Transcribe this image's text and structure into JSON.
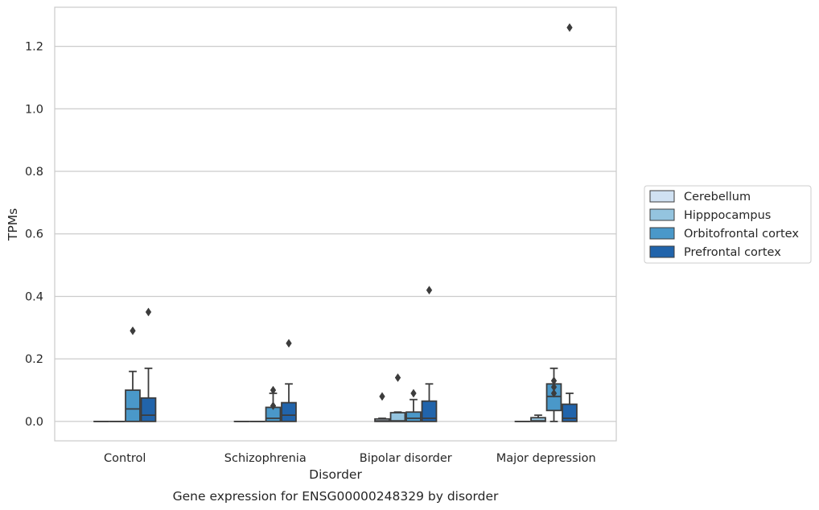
{
  "chart_data": {
    "type": "box",
    "title": "",
    "caption": "Gene expression for ENSG00000248329 by disorder",
    "xlabel": "Disorder",
    "ylabel": "TPMs",
    "ylim": [
      -0.062,
      1.325
    ],
    "yticks": [
      0.0,
      0.2,
      0.4,
      0.6,
      0.8,
      1.0,
      1.2
    ],
    "ytick_labels": [
      "0.0",
      "0.2",
      "0.4",
      "0.6",
      "0.8",
      "1.0",
      "1.2"
    ],
    "grid": "horizontal",
    "legend_position": "right",
    "categories": [
      "Control",
      "Schizophrenia",
      "Bipolar disorder",
      "Major depression"
    ],
    "series": [
      {
        "name": "Cerebellum",
        "color": "#d0e1f2",
        "boxes": [
          {
            "min": 0,
            "q1": 0,
            "median": 0,
            "q3": 0,
            "max": 0,
            "outliers": []
          },
          {
            "min": 0,
            "q1": 0,
            "median": 0,
            "q3": 0,
            "max": 0,
            "outliers": []
          },
          {
            "min": 0,
            "q1": 0,
            "median": 0.002,
            "q3": 0.008,
            "max": 0.01,
            "outliers": [
              0.08
            ]
          },
          {
            "min": 0,
            "q1": 0,
            "median": 0,
            "q3": 0,
            "max": 0,
            "outliers": []
          }
        ]
      },
      {
        "name": "Hipppocampus",
        "color": "#94c4df",
        "boxes": [
          {
            "min": 0,
            "q1": 0,
            "median": 0,
            "q3": 0,
            "max": 0,
            "outliers": []
          },
          {
            "min": 0,
            "q1": 0,
            "median": 0,
            "q3": 0,
            "max": 0,
            "outliers": []
          },
          {
            "min": 0,
            "q1": 0,
            "median": 0.002,
            "q3": 0.028,
            "max": 0.03,
            "outliers": [
              0.14
            ]
          },
          {
            "min": 0,
            "q1": 0,
            "median": 0.002,
            "q3": 0.012,
            "max": 0.02,
            "outliers": []
          }
        ]
      },
      {
        "name": "Orbitofrontal cortex",
        "color": "#4a98c9",
        "boxes": [
          {
            "min": 0,
            "q1": 0,
            "median": 0.04,
            "q3": 0.1,
            "max": 0.16,
            "outliers": [
              0.29
            ]
          },
          {
            "min": 0,
            "q1": 0,
            "median": 0.01,
            "q3": 0.045,
            "max": 0.09,
            "outliers": [
              0.05,
              0.1
            ]
          },
          {
            "min": 0,
            "q1": 0,
            "median": 0.01,
            "q3": 0.03,
            "max": 0.07,
            "outliers": [
              0.09
            ]
          },
          {
            "min": 0,
            "q1": 0.035,
            "median": 0.08,
            "q3": 0.12,
            "max": 0.17,
            "outliers": [
              0.09,
              0.11,
              0.13
            ]
          }
        ]
      },
      {
        "name": "Prefrontal cortex",
        "color": "#2164ab",
        "boxes": [
          {
            "min": 0,
            "q1": 0,
            "median": 0.02,
            "q3": 0.075,
            "max": 0.17,
            "outliers": [
              0.35
            ]
          },
          {
            "min": 0,
            "q1": 0,
            "median": 0.02,
            "q3": 0.06,
            "max": 0.12,
            "outliers": [
              0.25
            ]
          },
          {
            "min": 0,
            "q1": 0,
            "median": 0.01,
            "q3": 0.065,
            "max": 0.12,
            "outliers": [
              0.42
            ]
          },
          {
            "min": 0,
            "q1": 0,
            "median": 0.01,
            "q3": 0.055,
            "max": 0.09,
            "outliers": [
              1.26
            ]
          }
        ]
      }
    ]
  }
}
